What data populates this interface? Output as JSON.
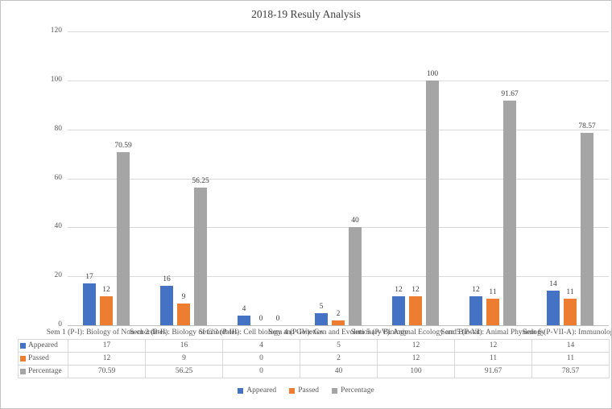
{
  "title": "2018-19 Resuly Analysis",
  "chart_data": {
    "type": "bar",
    "title": "2018-19 Resuly Analysis",
    "categories": [
      "Sem 1 (P-I): Biology of Non-chordates",
      "Sem 2 (P-II): Biology of Chordates",
      "Sem 3 (P-III): Cell biology and Genetics",
      "Sem 4 (P-IV): Gen and Evolutionary Biology",
      "Sem 5 (P-V): Animal Ecology and Biostat",
      "Sem 5 (P-VI): Animal Physiology",
      "Sem 6 (P-VII-A): Immunology"
    ],
    "series": [
      {
        "name": "Appeared",
        "color": "#4472C4",
        "values": [
          17,
          16,
          4,
          5,
          12,
          12,
          14
        ]
      },
      {
        "name": "Passed",
        "color": "#ED7D31",
        "values": [
          12,
          9,
          0,
          2,
          12,
          11,
          11
        ]
      },
      {
        "name": "Percentage",
        "color": "#A5A5A5",
        "values": [
          70.59,
          56.25,
          0,
          40,
          100,
          91.67,
          78.57
        ]
      }
    ],
    "y_axis": {
      "min": 0,
      "max": 120,
      "step": 20,
      "ticks": [
        0,
        20,
        40,
        60,
        80,
        100,
        120
      ]
    },
    "grid": true,
    "value_labels": true,
    "legend_position": "bottom",
    "has_data_table": true
  }
}
